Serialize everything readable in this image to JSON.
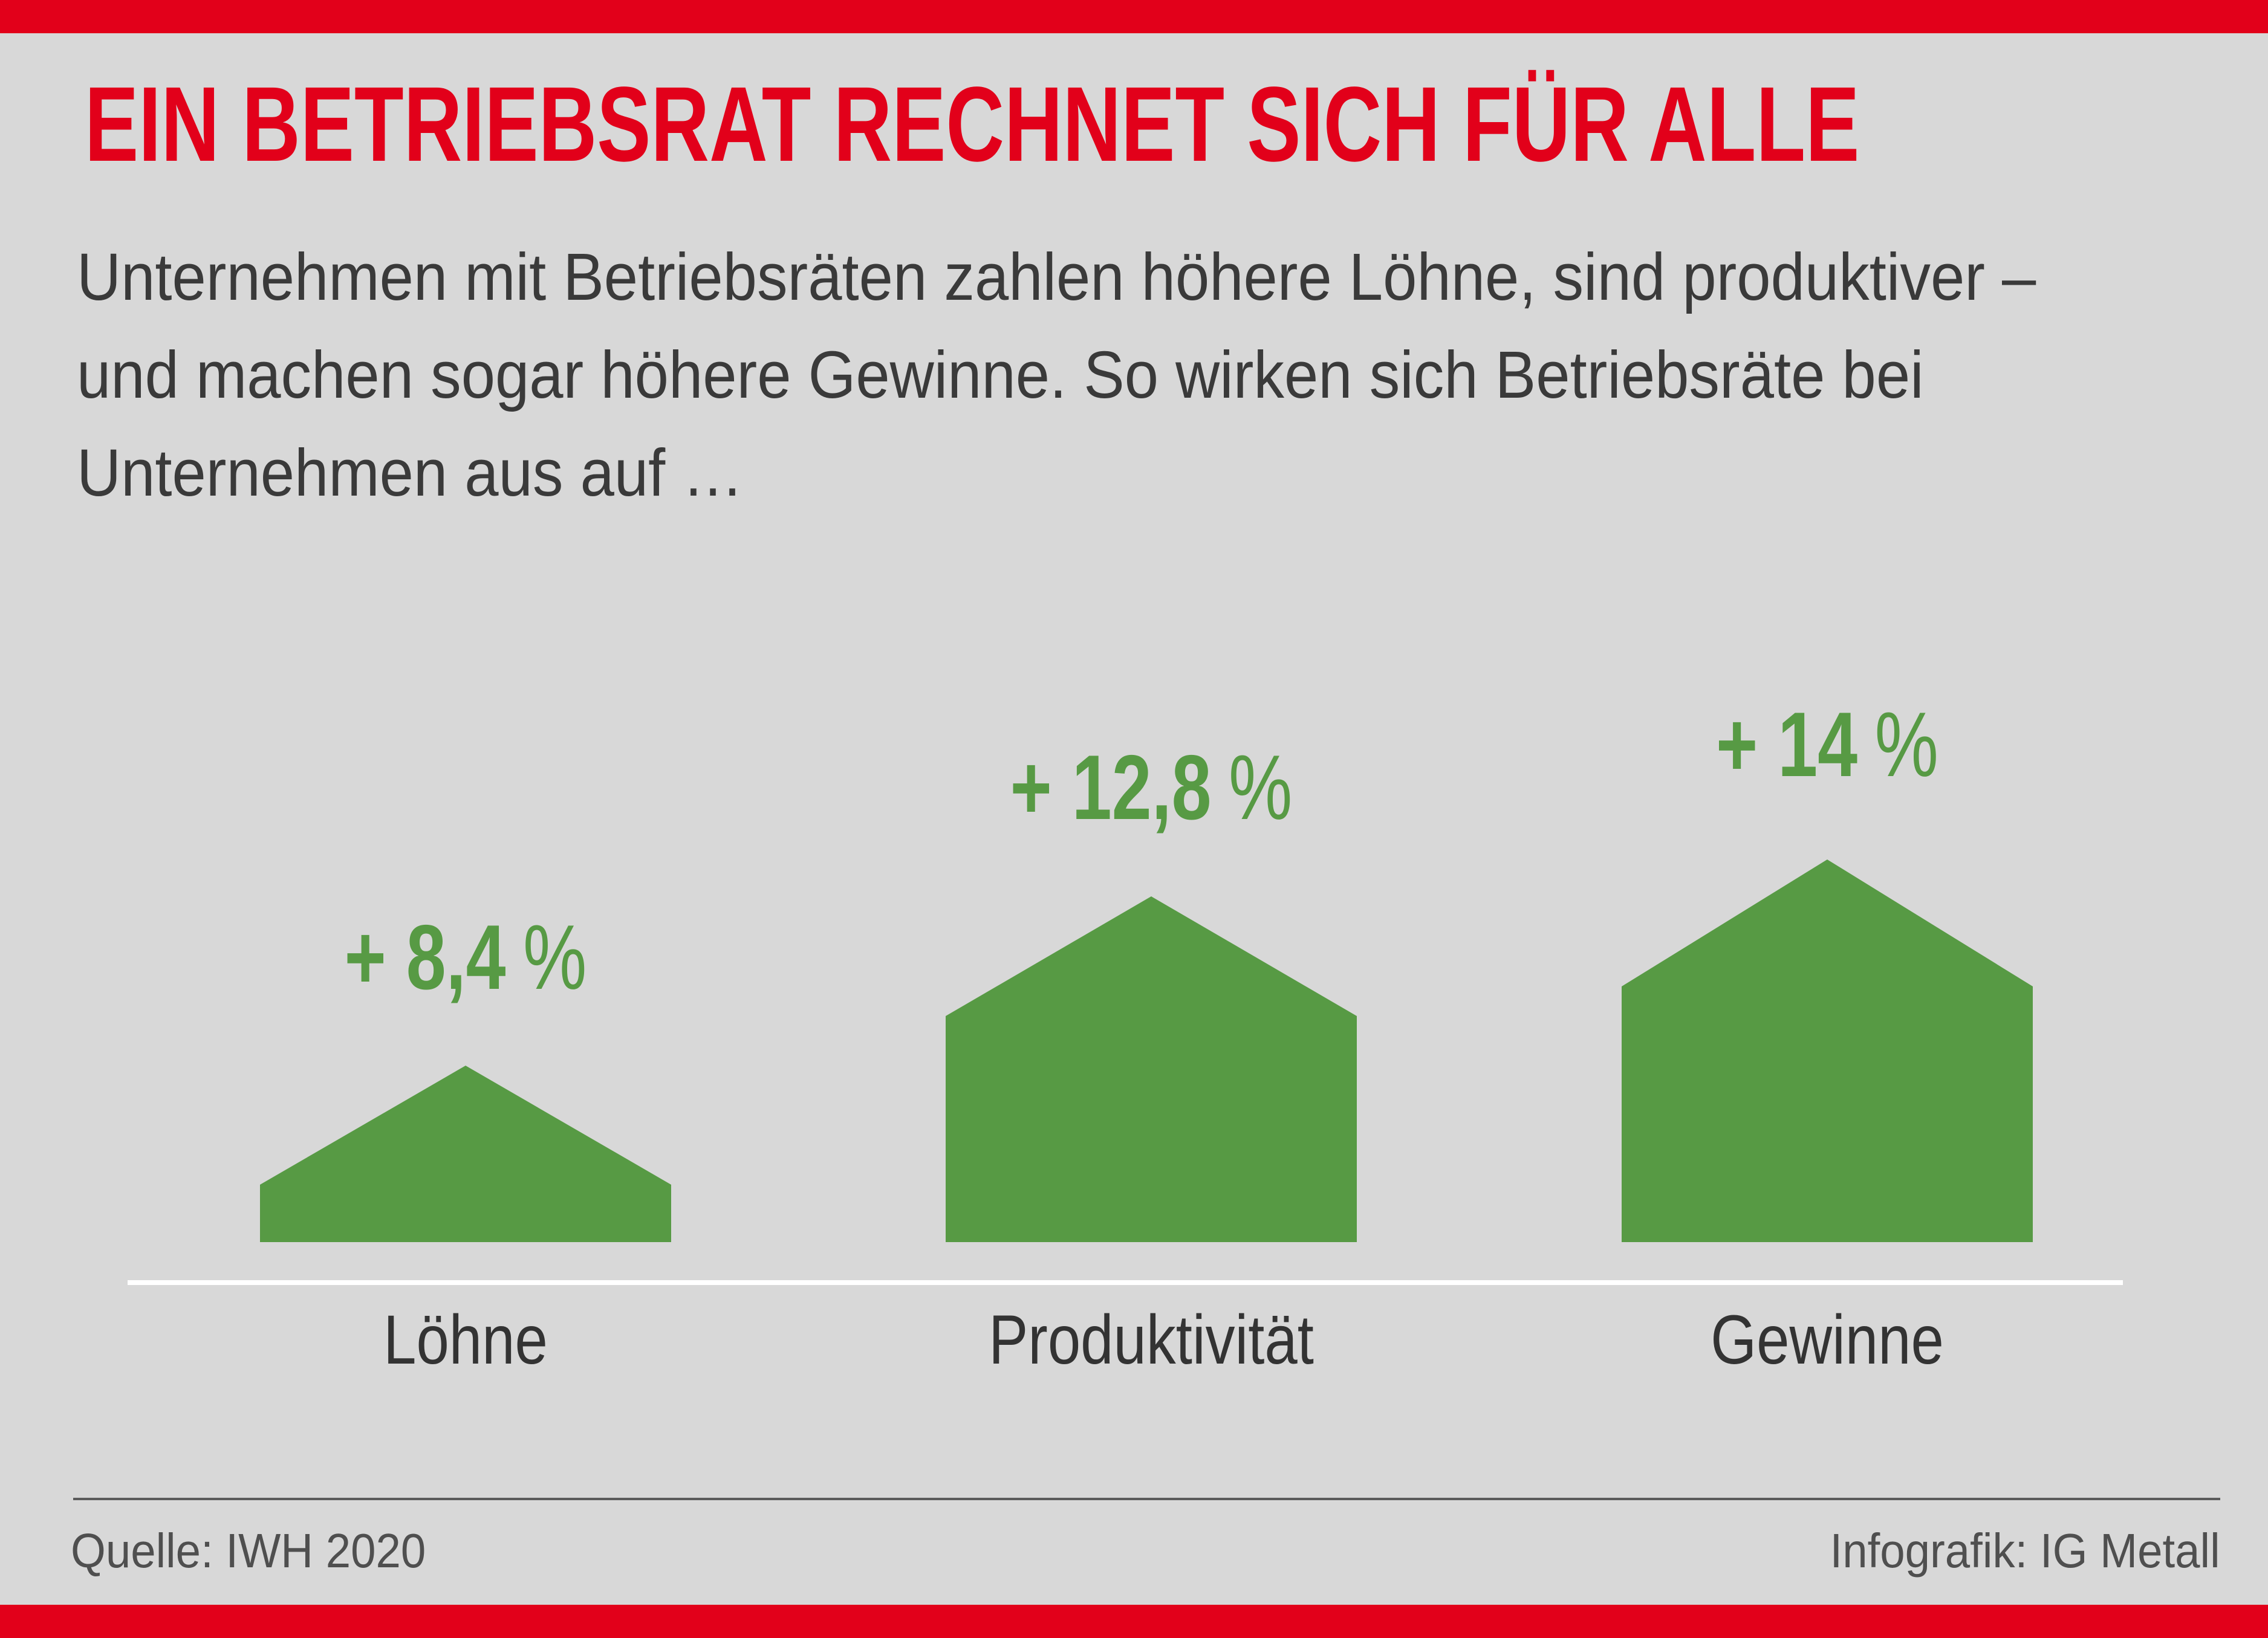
{
  "page": {
    "background": "#d8d8d8",
    "accent_red": "#e2001a",
    "accent_green": "#579a44",
    "text_dark": "#3a3a3a"
  },
  "header": {
    "title": "EIN BETRIEBSRAT RECHNET SICH FÜR ALLE"
  },
  "intro": {
    "lines": [
      "Unternehmen mit Betriebsräten zahlen höhere Löhne, sind produktiver –",
      "und machen sogar höhere Gewinne. So wirken sich Betriebsräte bei",
      "Unternehmen aus auf …"
    ]
  },
  "chart_data": {
    "type": "bar",
    "bar_style": "house-pentagon",
    "title": "EIN BETRIEBSRAT RECHNET SICH FÜR ALLE",
    "subtitle": "Unternehmen mit Betriebsräten zahlen höhere Löhne, sind produktiver – und machen sogar höhere Gewinne. So wirken sich Betriebsräte bei Unternehmen aus auf …",
    "categories": [
      "Löhne",
      "Produktivität",
      "Gewinne"
    ],
    "values": [
      8.4,
      12.8,
      14
    ],
    "value_labels": [
      "+ 8,4",
      "+ 12,8",
      "+ 14"
    ],
    "percent_sign": "%",
    "unit": "%",
    "bar_color": "#579a44",
    "grid": false,
    "legend": false,
    "source": "Quelle: IWH 2020",
    "credit": "Infografik: IG Metall"
  },
  "footer": {
    "source": "Quelle: IWH 2020",
    "credit": "Infografik: IG Metall"
  }
}
